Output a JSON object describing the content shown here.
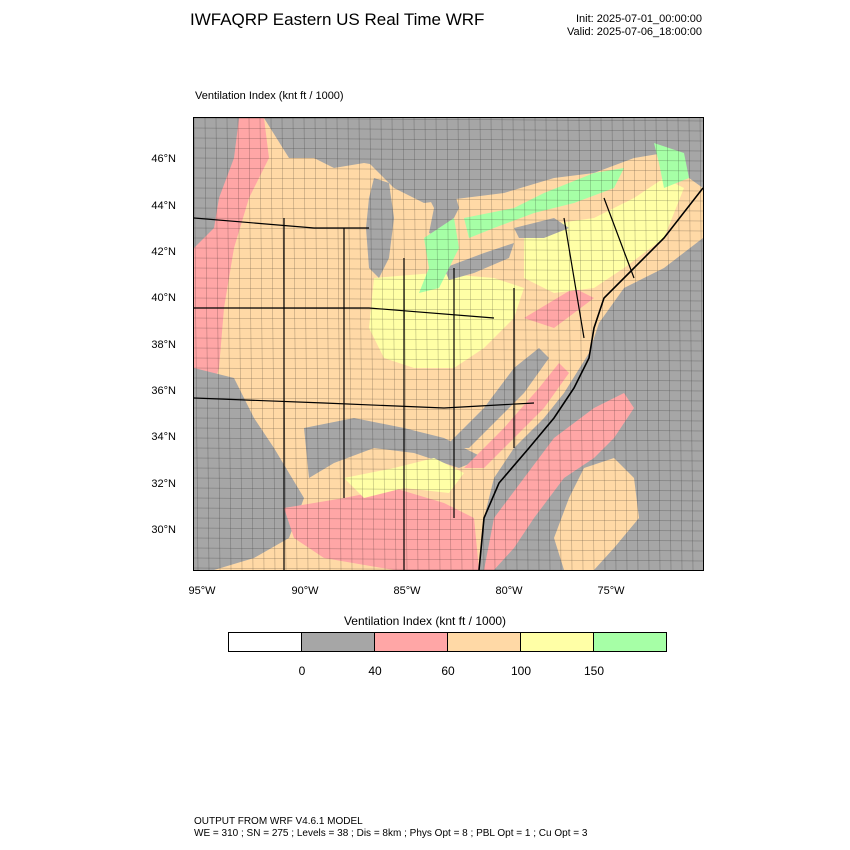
{
  "header": {
    "title": "IWFAQRP Eastern US Real Time WRF",
    "init": "Init: 2025-07-01_00:00:00",
    "valid": "Valid: 2025-07-06_18:00:00"
  },
  "field_label": "Ventilation Index   (knt ft / 1000)",
  "lat_ticks": [
    "46°N",
    "44°N",
    "42°N",
    "40°N",
    "38°N",
    "36°N",
    "34°N",
    "32°N",
    "30°N"
  ],
  "lon_ticks": [
    "95°W",
    "90°W",
    "85°W",
    "80°W",
    "75°W"
  ],
  "colorbar": {
    "title": "Ventilation Index  (knt ft / 1000)",
    "colors": [
      "#ffffff",
      "#a6a6a6",
      "#ffa6a6",
      "#ffd9a6",
      "#ffffa6",
      "#a6ffa6"
    ],
    "labels": [
      "0",
      "40",
      "60",
      "100",
      "150"
    ]
  },
  "map_colors": {
    "water": "#a6a6a6",
    "gray": "#a6a6a6",
    "pink": "#ffa6a6",
    "tan": "#ffd9a6",
    "yellow": "#ffffa6",
    "green": "#a6ffa6",
    "land_canada": "#a6a6a6"
  },
  "footer": {
    "line1": "OUTPUT FROM WRF V4.6.1 MODEL",
    "line2": "WE = 310 ; SN = 275 ; Levels = 38 ; Dis = 8km ; Phys Opt = 8 ; PBL Opt = 1 ; Cu Opt = 3"
  }
}
